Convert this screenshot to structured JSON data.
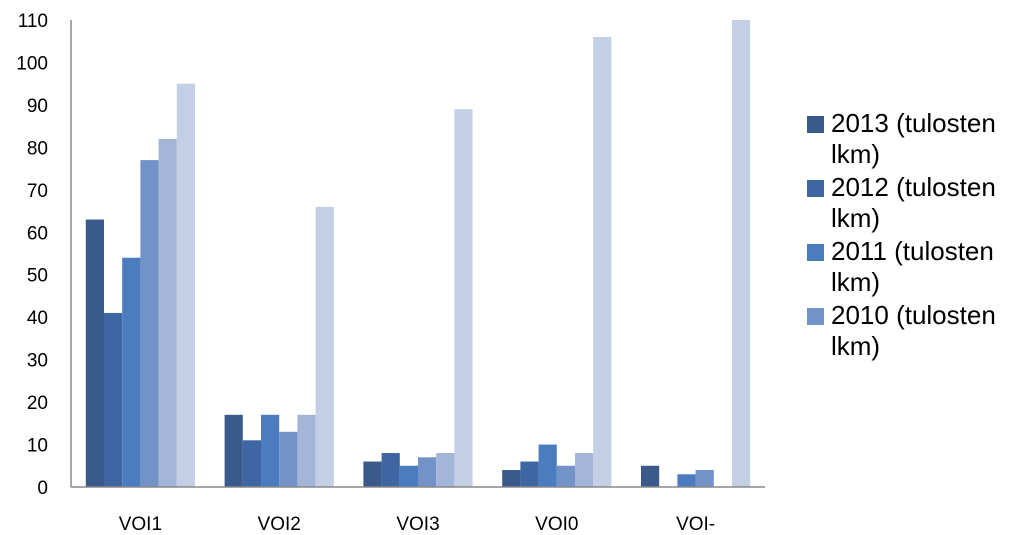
{
  "chart_data": {
    "type": "bar",
    "categories": [
      "VOI1",
      "VOI2",
      "VOI3",
      "VOI0",
      "VOI-"
    ],
    "ylim": [
      0,
      110
    ],
    "yticks": [
      0,
      10,
      20,
      30,
      40,
      50,
      60,
      70,
      80,
      90,
      100,
      110
    ],
    "grid": false,
    "legend_position": "right",
    "series": [
      {
        "name": "2013 (tulosten lkm)",
        "color": "#3b5a8c",
        "values": [
          63,
          17,
          6,
          4,
          5
        ]
      },
      {
        "name": "2012 (tulosten lkm)",
        "color": "#3e66a3",
        "values": [
          41,
          11,
          8,
          6,
          0
        ]
      },
      {
        "name": "2011 (tulosten lkm)",
        "color": "#4a7cbf",
        "values": [
          54,
          17,
          5,
          10,
          3
        ]
      },
      {
        "name": "2010 (tulosten lkm)",
        "color": "#7393c8",
        "values": [
          77,
          13,
          7,
          5,
          4
        ]
      },
      {
        "name": "",
        "color": "#a3b5d8",
        "values": [
          82,
          17,
          8,
          8,
          0
        ]
      },
      {
        "name": "",
        "color": "#c3cfe5",
        "values": [
          95,
          66,
          89,
          106,
          110
        ]
      }
    ]
  }
}
